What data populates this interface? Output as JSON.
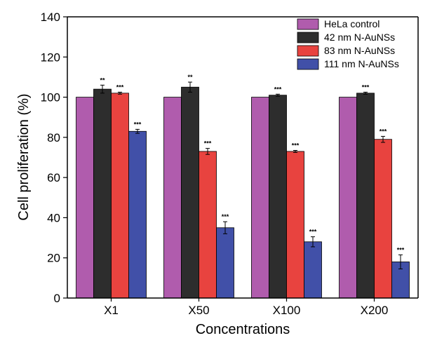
{
  "chart_data": {
    "type": "bar",
    "xlabel": "Concentrations",
    "ylabel": "Cell proliferation (%)",
    "ylim": [
      0,
      140
    ],
    "yticks": [
      0,
      20,
      40,
      60,
      80,
      100,
      120,
      140
    ],
    "categories": [
      "X1",
      "X50",
      "X100",
      "X200"
    ],
    "legend_position": "top-right",
    "grid": false,
    "series": [
      {
        "name": "HeLa control",
        "color": "#b05cad",
        "values": [
          100,
          100,
          100,
          100
        ],
        "errors": [
          0,
          0,
          0,
          0
        ],
        "significance": [
          "",
          "",
          "",
          ""
        ]
      },
      {
        "name": "42 nm N-AuNSs",
        "color": "#2d2d2d",
        "values": [
          104,
          105,
          101,
          102
        ],
        "errors": [
          2,
          2.5,
          0.5,
          0.5
        ],
        "significance": [
          "**",
          "**",
          "***",
          "***"
        ]
      },
      {
        "name": "83 nm N-AuNSs",
        "color": "#e8433f",
        "values": [
          102,
          73,
          73,
          79
        ],
        "errors": [
          0.5,
          1.5,
          0.5,
          1.5
        ],
        "significance": [
          "***",
          "***",
          "***",
          "***"
        ]
      },
      {
        "name": "111 nm N-AuNSs",
        "color": "#4150a8",
        "values": [
          83,
          35,
          28,
          18
        ],
        "errors": [
          1,
          3,
          2.5,
          3.5
        ],
        "significance": [
          "***",
          "***",
          "***",
          "***"
        ]
      }
    ]
  }
}
